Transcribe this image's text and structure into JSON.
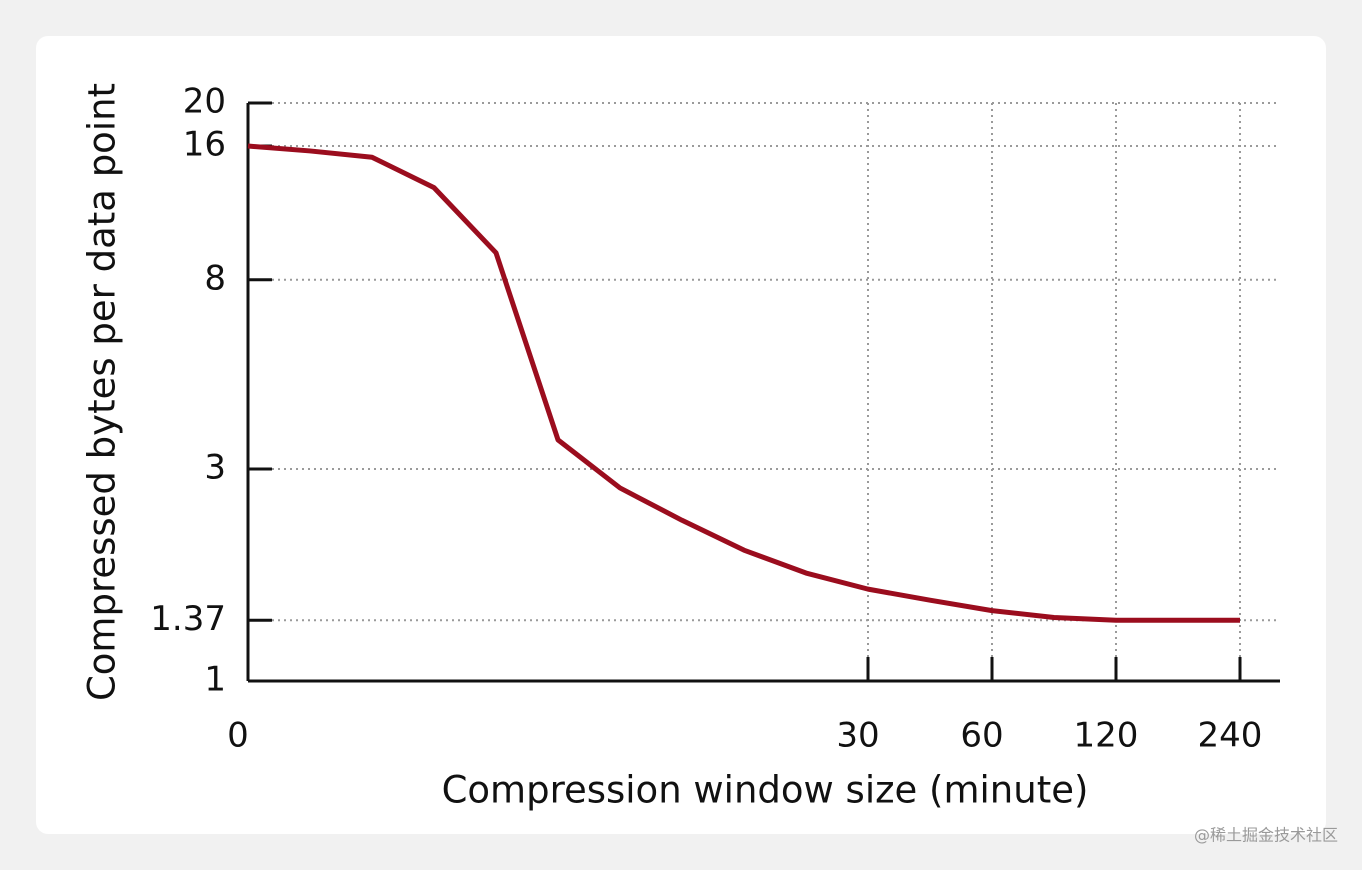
{
  "chart_data": {
    "type": "line",
    "x_label": "Compression window size (minute)",
    "y_label": "Compressed bytes per data point",
    "categories": [
      "0",
      null,
      null,
      null,
      null,
      null,
      null,
      null,
      null,
      null,
      "30",
      null,
      "60",
      null,
      "120",
      null,
      "240"
    ],
    "series": [
      {
        "name": "Compressed bytes per data point",
        "color": "#9b0d1e",
        "values": [
          16,
          15.6,
          15.1,
          12.9,
          9.2,
          3.49,
          2.72,
          2.3,
          1.97,
          1.75,
          1.61,
          1.52,
          1.44,
          1.39,
          1.37,
          1.37,
          1.37
        ]
      }
    ],
    "ylim": [
      1,
      20
    ],
    "yticks": [
      1,
      1.37,
      3,
      8,
      16,
      20
    ],
    "ylog": true,
    "grid": true
  },
  "watermark": "@稀土掘金技术社区"
}
